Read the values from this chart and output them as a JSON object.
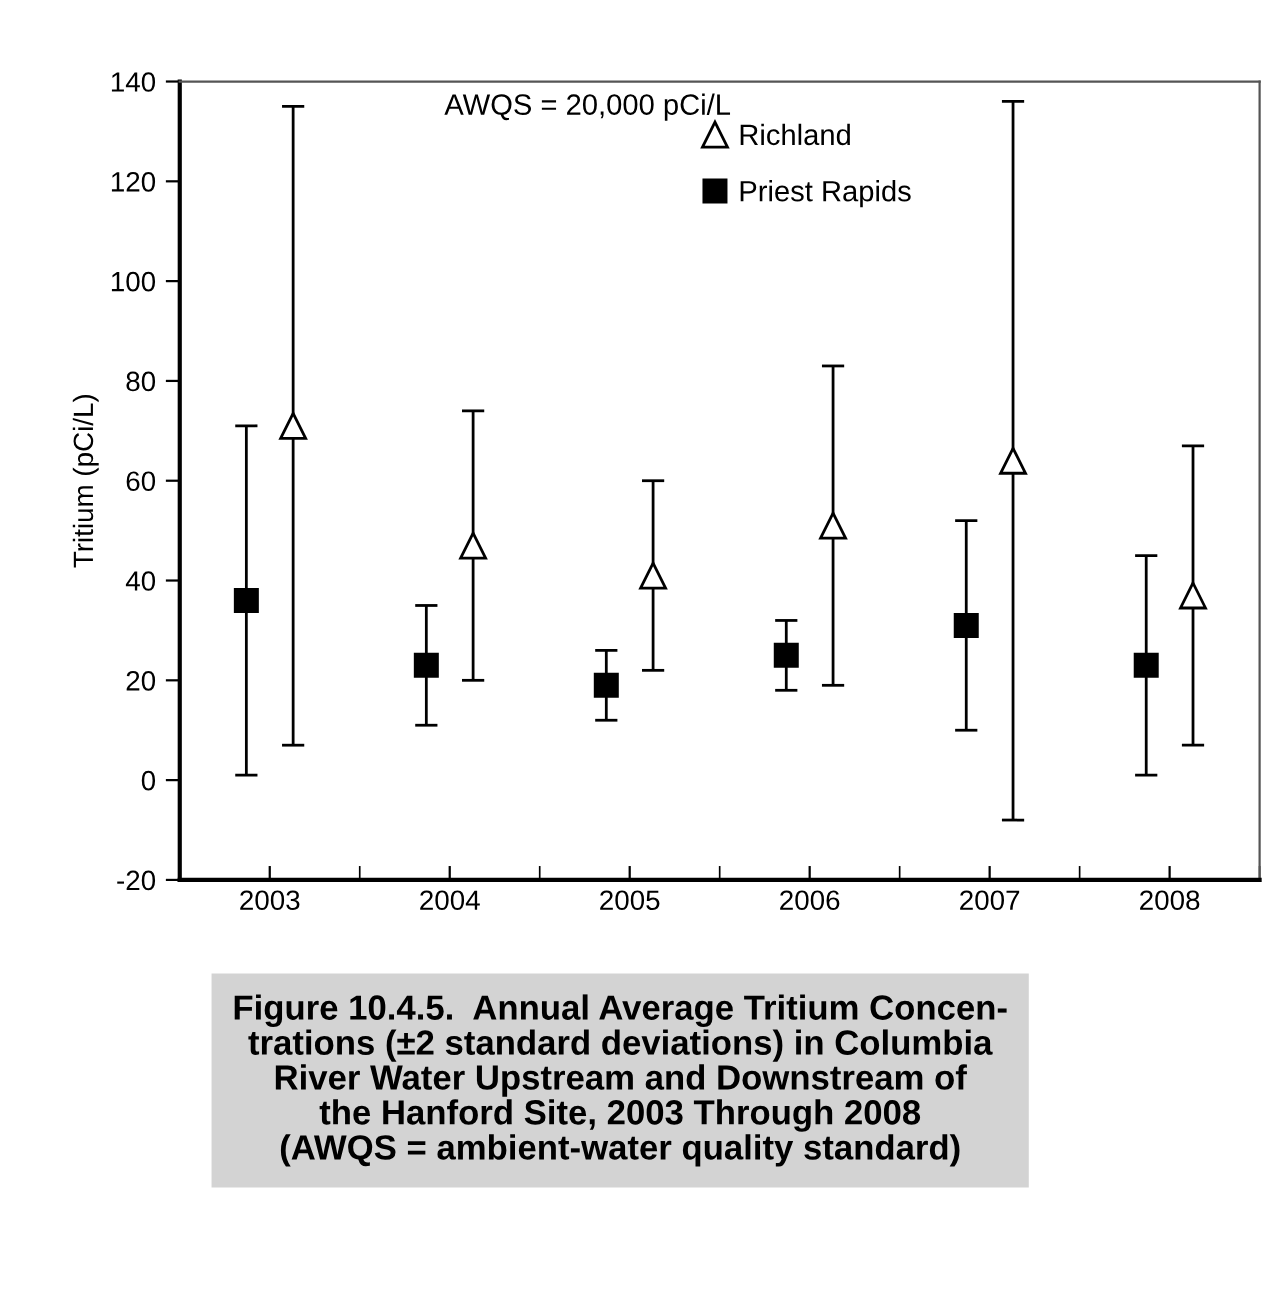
{
  "chart_data": {
    "type": "scatter",
    "title": "Figure 10.4.5.  Annual Average Tritium Concen-\ntrations (±2 standard deviations) in Columbia\nRiver Water Upstream and Downstream of\nthe Hanford Site, 2003 Through 2008\n(AWQS = ambient-water quality standard)",
    "ylabel": "Tritium (pCi/L)",
    "annotations": [
      "AWQS = 20,000 pCi/L"
    ],
    "categories": [
      "2003",
      "2004",
      "2005",
      "2006",
      "2007",
      "2008"
    ],
    "series": [
      {
        "name": "Richland",
        "color": "#000000",
        "marker": "triangle",
        "values": [
          71,
          47,
          41,
          51,
          64,
          37
        ],
        "errors": [
          [
            7,
            135
          ],
          [
            20,
            74
          ],
          [
            22,
            60
          ],
          [
            19,
            83
          ],
          [
            -8,
            136
          ],
          [
            7,
            67
          ]
        ]
      },
      {
        "name": "Priest Rapids",
        "color": "#000000",
        "marker": "square",
        "values": [
          36,
          23,
          19,
          25,
          31,
          23
        ],
        "errors": [
          [
            1,
            71
          ],
          [
            11,
            35
          ],
          [
            12,
            26
          ],
          [
            18,
            32
          ],
          [
            10,
            52
          ],
          [
            1,
            45
          ]
        ]
      }
    ],
    "ylim": [
      -20,
      140
    ],
    "yticks": [
      -20,
      0,
      20,
      40,
      60,
      80,
      100,
      120,
      140
    ],
    "grid": false,
    "legend": "top"
  }
}
